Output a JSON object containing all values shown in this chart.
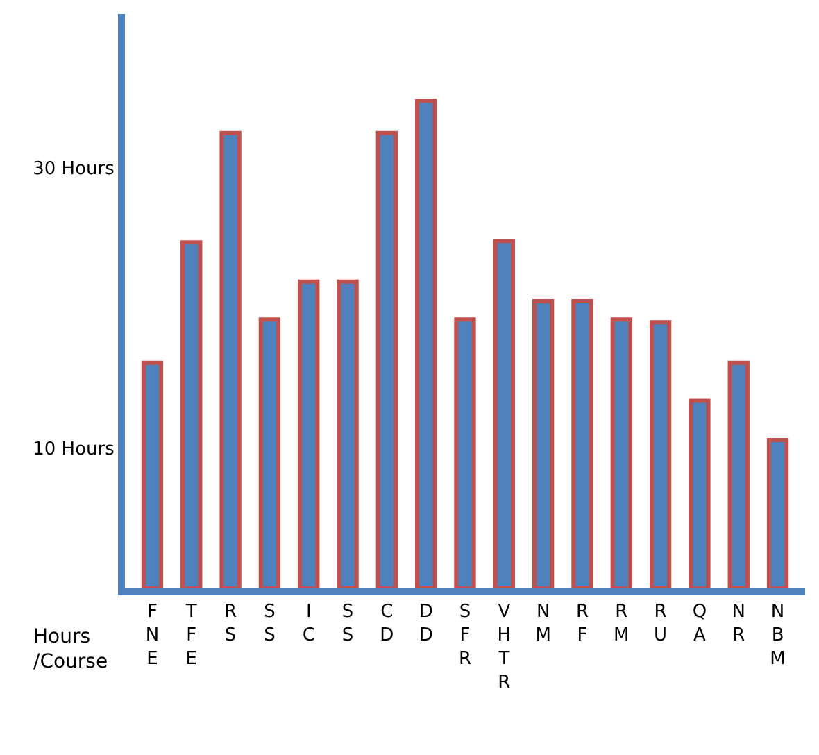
{
  "chart_data": {
    "type": "bar",
    "categories": [
      "FNE",
      "TFE",
      "RS",
      "SS",
      "IC",
      "SS",
      "CD",
      "DD",
      "SFR",
      "VHTR",
      "NM",
      "RF",
      "RM",
      "RU",
      "QA",
      "NR",
      "NBM"
    ],
    "values": [
      16.1,
      24.7,
      32.5,
      19.2,
      21.9,
      21.9,
      32.5,
      34.8,
      19.2,
      24.8,
      20.5,
      20.5,
      19.2,
      19.0,
      13.4,
      16.1,
      10.6
    ],
    "color": "#4f81bd",
    "xlabel": "Hours /Course",
    "ylim": [
      0,
      41
    ],
    "yticks": [
      {
        "value": 10,
        "label": "10 Hours"
      },
      {
        "value": 30,
        "label": "30 Hours"
      }
    ]
  }
}
